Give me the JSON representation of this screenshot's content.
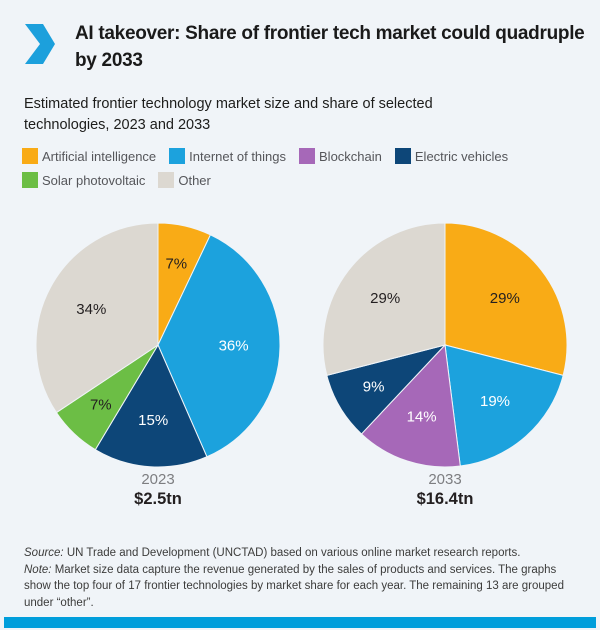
{
  "brand": {
    "background": "#F0F4F8",
    "chevron_color": "#1CA0DC",
    "bar_color": "#009EDB"
  },
  "header": {
    "title": "AI takeover: Share of frontier tech market could quadruple by 2033"
  },
  "subtitle": "Estimated frontier technology market size and share of selected technologies, 2023 and 2033",
  "legend": [
    {
      "label": "Artificial intelligence",
      "color": "#F9AB16"
    },
    {
      "label": "Internet of things",
      "color": "#1CA2DD"
    },
    {
      "label": "Blockchain",
      "color": "#A668B8"
    },
    {
      "label": "Electric vehicles",
      "color": "#0D4678"
    },
    {
      "label": "Solar photovoltaic",
      "color": "#6CBE45"
    },
    {
      "label": "Other",
      "color": "#DCD8D1"
    }
  ],
  "chart_data": [
    {
      "type": "pie",
      "title": "2023",
      "total_label": "$2.5tn",
      "start_angle_deg": 0,
      "direction": "clockwise",
      "slices": [
        {
          "label": "Artificial intelligence",
          "value": 7,
          "display": "7%",
          "color": "#F9AB16",
          "text_color": "#231F20"
        },
        {
          "label": "Internet of things",
          "value": 36,
          "display": "36%",
          "color": "#1CA2DD",
          "text_color": "#FFFFFF"
        },
        {
          "label": "Electric vehicles",
          "value": 15,
          "display": "15%",
          "color": "#0D4678",
          "text_color": "#FFFFFF"
        },
        {
          "label": "Solar photovoltaic",
          "value": 7,
          "display": "7%",
          "color": "#6CBE45",
          "text_color": "#231F20"
        },
        {
          "label": "Other",
          "value": 34,
          "display": "34%",
          "color": "#DCD8D1",
          "text_color": "#231F20"
        }
      ]
    },
    {
      "type": "pie",
      "title": "2033",
      "total_label": "$16.4tn",
      "start_angle_deg": 0,
      "direction": "clockwise",
      "slices": [
        {
          "label": "Artificial intelligence",
          "value": 29,
          "display": "29%",
          "color": "#F9AB16",
          "text_color": "#231F20"
        },
        {
          "label": "Internet of things",
          "value": 19,
          "display": "19%",
          "color": "#1CA2DD",
          "text_color": "#FFFFFF"
        },
        {
          "label": "Blockchain",
          "value": 14,
          "display": "14%",
          "color": "#A668B8",
          "text_color": "#FFFFFF"
        },
        {
          "label": "Electric vehicles",
          "value": 9,
          "display": "9%",
          "color": "#0D4678",
          "text_color": "#FFFFFF"
        },
        {
          "label": "Other",
          "value": 29,
          "display": "29%",
          "color": "#DCD8D1",
          "text_color": "#231F20"
        }
      ]
    }
  ],
  "footer": {
    "source_label": "Source:",
    "source_text": " UN Trade and Development (UNCTAD) based on various online market research reports.",
    "note_label": "Note:",
    "note_text": " Market size data capture the revenue generated by the sales of products and services. The graphs show the top four of 17 frontier technologies by market share for each year. The remaining 13 are grouped under “other”."
  }
}
